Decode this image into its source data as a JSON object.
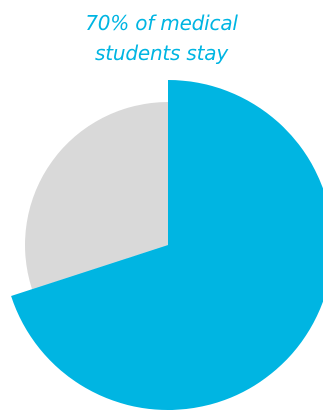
{
  "chart_data": {
    "type": "pie",
    "title_lines": [
      "70% of medical",
      "students stay"
    ],
    "slices": [
      {
        "value": 70,
        "color": "#00b5e2"
      },
      {
        "value": 30,
        "color": "#d9d9d9"
      }
    ],
    "colors": {
      "accent": "#00b5e2",
      "remainder": "#d9d9d9"
    }
  }
}
